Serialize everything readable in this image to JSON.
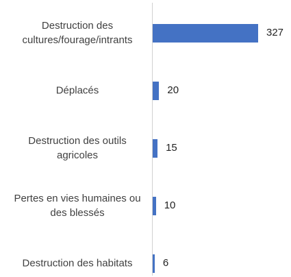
{
  "chart_data": {
    "type": "bar",
    "orientation": "horizontal",
    "categories": [
      "Destruction des cultures/fourage/intrants",
      "Déplacés",
      "Destruction des outils agricoles",
      "Pertes en vies humaines ou des blessés",
      "Destruction des habitats"
    ],
    "values": [
      327,
      20,
      15,
      10,
      6
    ],
    "color": "#4472c4"
  }
}
